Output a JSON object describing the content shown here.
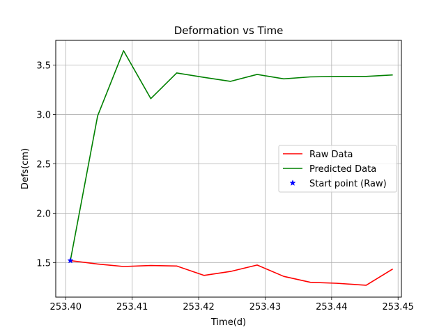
{
  "chart_data": {
    "type": "line",
    "title": "Deformation vs Time",
    "xlabel": "Time(d)",
    "ylabel": "Defs(cm)",
    "xlim": [
      253.3985,
      253.4505
    ],
    "ylim": [
      1.15,
      3.75
    ],
    "xticks": [
      253.4,
      253.41,
      253.42,
      253.43,
      253.44,
      253.45
    ],
    "xtick_labels": [
      "253.40",
      "253.41",
      "253.42",
      "253.43",
      "253.44",
      "253.45"
    ],
    "yticks": [
      1.5,
      2.0,
      2.5,
      3.0,
      3.5
    ],
    "ytick_labels": [
      "1.5",
      "2.0",
      "2.5",
      "3.0",
      "3.5"
    ],
    "grid": true,
    "legend_position": "center-right",
    "series": [
      {
        "name": "Raw Data",
        "color": "#ff0000",
        "style": "line",
        "x": [
          253.4007,
          253.4048,
          253.4087,
          253.4128,
          253.4167,
          253.4208,
          253.4248,
          253.4288,
          253.4328,
          253.4368,
          253.4408,
          253.4452,
          253.4492
        ],
        "y": [
          1.52,
          1.485,
          1.46,
          1.47,
          1.465,
          1.37,
          1.41,
          1.475,
          1.36,
          1.3,
          1.29,
          1.27,
          1.435
        ]
      },
      {
        "name": "Predicted Data",
        "color": "#008000",
        "style": "line",
        "x": [
          253.4007,
          253.4048,
          253.4087,
          253.4128,
          253.4167,
          253.4208,
          253.4248,
          253.4288,
          253.4328,
          253.4368,
          253.4408,
          253.4452,
          253.4492
        ],
        "y": [
          1.52,
          2.985,
          3.645,
          3.16,
          3.42,
          3.375,
          3.335,
          3.405,
          3.36,
          3.38,
          3.385,
          3.385,
          3.4
        ]
      },
      {
        "name": "Start point (Raw)",
        "color": "#0000ff",
        "style": "marker-star",
        "x": [
          253.4007
        ],
        "y": [
          1.52
        ]
      }
    ]
  }
}
